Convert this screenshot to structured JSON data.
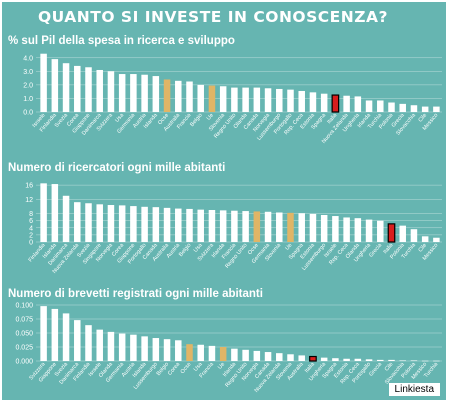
{
  "main_title": "QUANTO SI INVESTE IN CONOSCENZA?",
  "credit": "Linkiesta",
  "colors": {
    "background": "#66b5b1",
    "bar": "#ffffff",
    "highlight_gold": "#e0b566",
    "highlight_italy": "#d81e1e",
    "grid": "#ffffff"
  },
  "chart_data": [
    {
      "type": "bar",
      "title": "% sul Pil della spesa in ricerca e sviluppo",
      "ylim": [
        0,
        4.5
      ],
      "yticks": [
        "0.0",
        "1.0",
        "2.0",
        "3.0",
        "4.0"
      ],
      "categories": [
        "Israele",
        "Finlandia",
        "Svezia",
        "Corea",
        "Giappone",
        "Danimarca",
        "Svizzera",
        "Usa",
        "Germania",
        "Austria",
        "Islanda",
        "Ocse",
        "Australia",
        "Francia",
        "Belgio",
        "Ue",
        "Slovenia",
        "Regno Unito",
        "Olanda",
        "Canada",
        "Norvegia",
        "Lussemburgo",
        "Portogallo",
        "Rep. Ceca",
        "Estonia",
        "Spagna",
        "Italia",
        "Nuova Zelanda",
        "Ungheria",
        "Irlanda",
        "Turchia",
        "Polonia",
        "Grecia",
        "Slovacchia",
        "Cile",
        "Messico"
      ],
      "values": [
        4.3,
        3.9,
        3.6,
        3.4,
        3.3,
        3.1,
        3.0,
        2.8,
        2.8,
        2.75,
        2.65,
        2.4,
        2.3,
        2.25,
        2.0,
        1.95,
        1.9,
        1.8,
        1.8,
        1.8,
        1.75,
        1.7,
        1.65,
        1.55,
        1.45,
        1.35,
        1.25,
        1.2,
        1.15,
        0.85,
        0.85,
        0.7,
        0.6,
        0.5,
        0.4,
        0.4
      ],
      "highlight_gold": [
        "Ocse",
        "Ue"
      ],
      "highlight_red": [
        "Italia"
      ]
    },
    {
      "type": "bar",
      "title": "Numero di ricercatori ogni mille abitanti",
      "ylim": [
        0,
        18
      ],
      "yticks": [
        "0",
        "2",
        "4",
        "6",
        "8",
        "12",
        "16"
      ],
      "categories": [
        "Finlandia",
        "Islanda",
        "Danimarca",
        "Nuova Zelanda",
        "Svezia",
        "Singapore",
        "Norvegia",
        "Corea",
        "Giappone",
        "Portogallo",
        "Canada",
        "Australia",
        "Austria",
        "Belgio",
        "Usa",
        "Svizzera",
        "Irlanda",
        "Francia",
        "Regno Unito",
        "Ocse",
        "Germania",
        "Slovenia",
        "Ue",
        "Spagna",
        "Estonia",
        "Lussemburgo",
        "Israele",
        "Rep. Ceca",
        "Olanda",
        "Ungheria",
        "Grecia",
        "Italia",
        "Polonia",
        "Turchia",
        "Cile",
        "Messico"
      ],
      "values": [
        16.5,
        16.3,
        13.0,
        11.2,
        10.9,
        10.6,
        10.4,
        10.3,
        10.1,
        9.9,
        9.8,
        9.6,
        9.4,
        9.3,
        9.1,
        9.0,
        8.9,
        8.8,
        8.7,
        8.6,
        8.5,
        8.3,
        8.2,
        8.1,
        7.9,
        7.6,
        7.3,
        6.9,
        6.7,
        6.3,
        6.0,
        5.1,
        4.6,
        3.6,
        1.6,
        1.2
      ],
      "highlight_gold": [
        "Ocse",
        "Ue"
      ],
      "highlight_red": [
        "Italia"
      ]
    },
    {
      "type": "bar",
      "title": "Numero di brevetti registrati ogni mille abitanti",
      "ylim": [
        0,
        0.1
      ],
      "yticks": [
        "0.000",
        "0.025",
        "0.050",
        "0.075",
        "0.100"
      ],
      "categories": [
        "Svizzera",
        "Giappone",
        "Svezia",
        "Danimarca",
        "Finlandia",
        "Israele",
        "Olanda",
        "Germania",
        "Austria",
        "Islanda",
        "Lussemburgo",
        "Belgio",
        "Corea",
        "Ocse",
        "Usa",
        "Francia",
        "Ue",
        "Irlanda",
        "Regno Unito",
        "Norvegia",
        "Canada",
        "Nuova Zelanda",
        "Slovenia",
        "Australia",
        "Italia",
        "Ungheria",
        "Spagna",
        "Estonia",
        "Rep. Ceca",
        "Portogallo",
        "Grecia",
        "Cile",
        "Slovacchia",
        "Polonia",
        "Messico",
        "Turchia"
      ],
      "values": [
        0.098,
        0.093,
        0.085,
        0.073,
        0.064,
        0.056,
        0.052,
        0.049,
        0.047,
        0.044,
        0.041,
        0.039,
        0.037,
        0.03,
        0.029,
        0.027,
        0.025,
        0.022,
        0.02,
        0.018,
        0.016,
        0.014,
        0.012,
        0.01,
        0.008,
        0.006,
        0.005,
        0.004,
        0.004,
        0.003,
        0.002,
        0.002,
        0.001,
        0.001,
        0.0005,
        0.0005
      ],
      "highlight_gold": [
        "Ocse",
        "Ue"
      ],
      "highlight_red": [
        "Italia"
      ]
    }
  ]
}
